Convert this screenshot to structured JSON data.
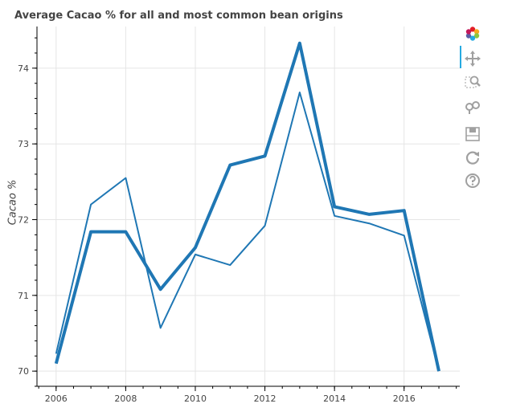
{
  "chart_data": {
    "type": "line",
    "title": "Average Cacao % for all and most common bean origins",
    "xlabel": "",
    "ylabel": "Cacao %",
    "xlim": [
      2005.45,
      2017.6
    ],
    "ylim": [
      69.8,
      74.55
    ],
    "x_ticks": [
      "2006",
      "2008",
      "2010",
      "2012",
      "2014",
      "2016"
    ],
    "y_ticks": [
      "70",
      "71",
      "72",
      "73",
      "74"
    ],
    "grid": true,
    "legend": "none",
    "x": [
      2006,
      2007,
      2008,
      2009,
      2010,
      2011,
      2012,
      2013,
      2014,
      2015,
      2016,
      2017
    ],
    "series": [
      {
        "values": [
          70.23,
          72.2,
          72.55,
          70.57,
          71.54,
          71.4,
          71.92,
          73.68,
          72.05,
          71.95,
          71.79,
          70.0
        ],
        "color": "#1f77b4",
        "line_width": "thin"
      },
      {
        "values": [
          70.1,
          71.84,
          71.84,
          71.08,
          71.63,
          72.72,
          72.84,
          74.33,
          72.17,
          72.07,
          72.12,
          70.0
        ],
        "color": "#1f77b4",
        "line_width": "thick"
      }
    ]
  },
  "toolbar": {
    "tools": [
      "bokeh-logo-icon",
      "pan-icon",
      "box-zoom-icon",
      "wheel-zoom-icon",
      "save-icon",
      "reset-icon",
      "help-icon"
    ],
    "active": "pan-icon"
  }
}
